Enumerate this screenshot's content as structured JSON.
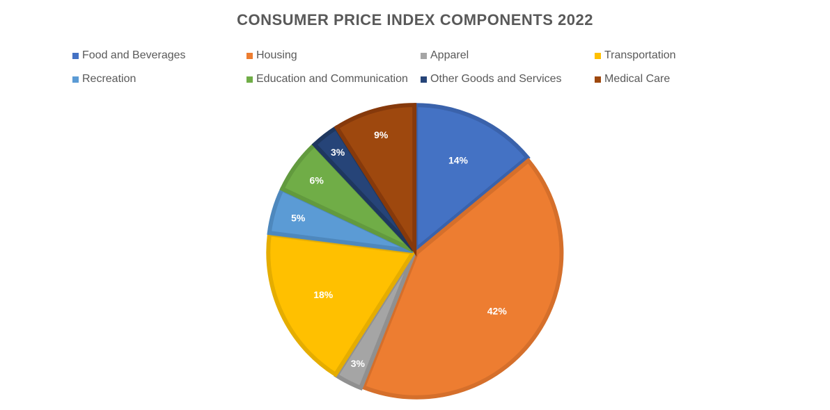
{
  "chart_data": {
    "type": "pie",
    "title": "CONSUMER PRICE INDEX COMPONENTS 2022",
    "legend_position": "top",
    "categories": [
      "Food and Beverages",
      "Housing",
      "Apparel",
      "Transportation",
      "Recreation",
      "Education and Communication",
      "Other Goods and Services",
      "Medical Care"
    ],
    "values": [
      14,
      42,
      3,
      18,
      5,
      6,
      3,
      9
    ],
    "data_labels": [
      "14%",
      "42%",
      "3%",
      "18%",
      "5%",
      "6%",
      "3%",
      "9%"
    ],
    "colors": [
      "#4472C4",
      "#ED7D31",
      "#A5A5A5",
      "#FFC000",
      "#5B9BD5",
      "#70AD47",
      "#264478",
      "#9E480E"
    ],
    "border_colors": [
      "#3A62AB",
      "#D56F2B",
      "#909090",
      "#E5AD00",
      "#4E88BD",
      "#629A3E",
      "#1E375F",
      "#86390B"
    ]
  }
}
